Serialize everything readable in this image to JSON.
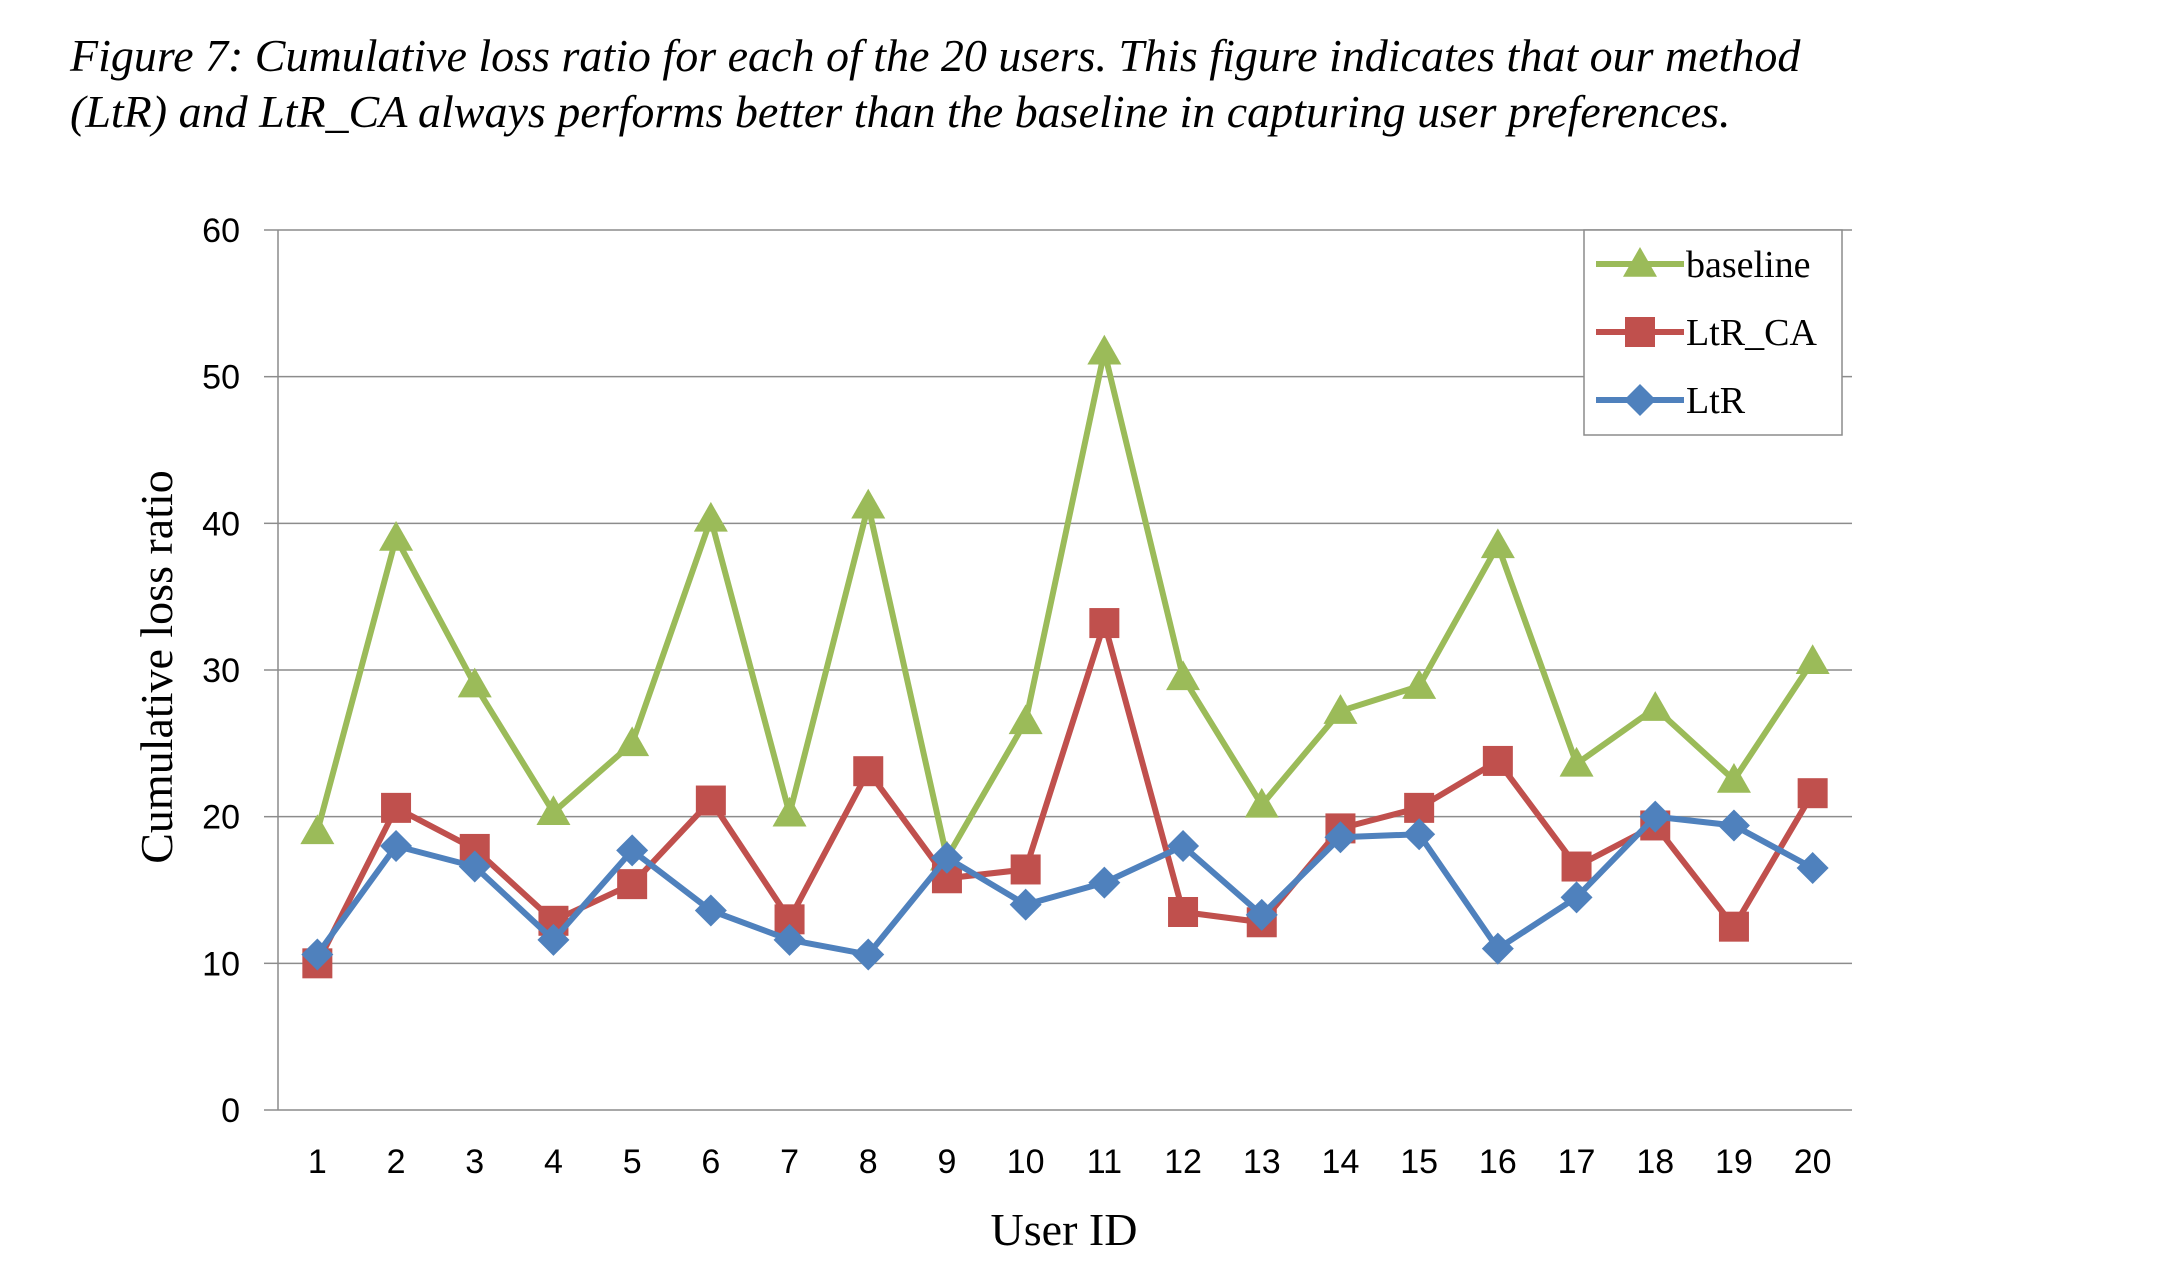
{
  "caption": {
    "line1": "Figure  7: Cumulative loss ratio for each of the 20 users. This figure indicates that our method",
    "line2": "(LtR) and LtR_CA always performs better than the baseline in capturing user preferences."
  },
  "chart_data": {
    "type": "line",
    "xlabel": "User ID",
    "ylabel": "Cumulative loss ratio",
    "ylim": [
      0,
      60
    ],
    "yticks": [
      0,
      10,
      20,
      30,
      40,
      50,
      60
    ],
    "grid": true,
    "legend_position": "top-right",
    "categories": [
      "1",
      "2",
      "3",
      "4",
      "5",
      "6",
      "7",
      "8",
      "9",
      "10",
      "11",
      "12",
      "13",
      "14",
      "15",
      "16",
      "17",
      "18",
      "19",
      "20"
    ],
    "series": [
      {
        "name": "baseline",
        "color": "#9BBB59",
        "marker": "triangle",
        "values": [
          19,
          39,
          29,
          20.3,
          25,
          40.3,
          20.2,
          41.2,
          17.2,
          26.5,
          51.7,
          29.5,
          20.8,
          27.2,
          28.9,
          38.5,
          23.6,
          27.4,
          22.5,
          30.6
        ]
      },
      {
        "name": "LtR_CA",
        "color": "#C0504D",
        "marker": "square",
        "values": [
          10,
          20.6,
          17.8,
          12.9,
          15.4,
          21.1,
          13,
          23.1,
          15.8,
          16.4,
          33.2,
          13.5,
          12.8,
          19.2,
          20.6,
          23.8,
          16.6,
          19.4,
          12.5,
          21.6
        ]
      },
      {
        "name": "LtR",
        "color": "#4F81BD",
        "marker": "diamond",
        "values": [
          10.6,
          18,
          16.6,
          11.6,
          17.7,
          13.6,
          11.6,
          10.6,
          17.2,
          14,
          15.5,
          18,
          13.3,
          18.6,
          18.8,
          11,
          14.5,
          20,
          19.4,
          16.5
        ]
      }
    ]
  }
}
